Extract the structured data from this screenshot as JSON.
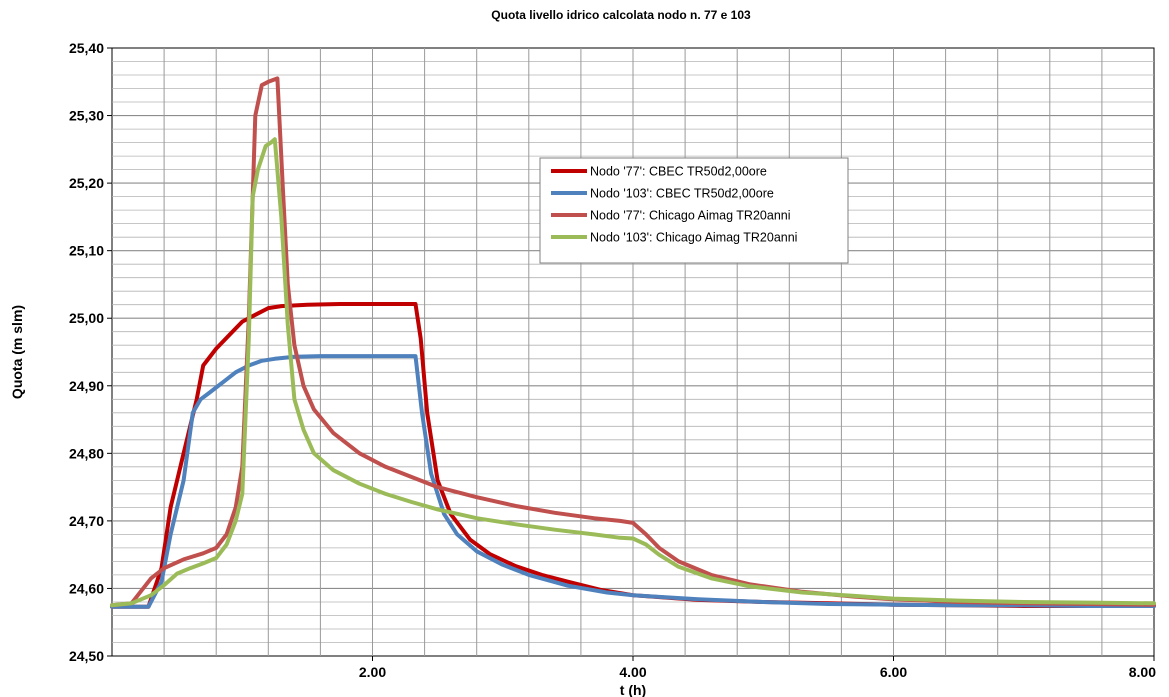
{
  "chart_data": {
    "type": "line",
    "title": "Quota livello idrico calcolata nodo n. 77 e 103",
    "xlabel": "t (h)",
    "ylabel": "Quota (m slm)",
    "xlim": [
      0,
      8
    ],
    "ylim": [
      24.5,
      25.4
    ],
    "x_ticks": [
      2,
      4,
      6,
      8
    ],
    "x_tick_labels": [
      "2.00",
      "4.00",
      "6.00",
      "8.00"
    ],
    "y_ticks": [
      24.5,
      24.6,
      24.7,
      24.8,
      24.9,
      25.0,
      25.1,
      25.2,
      25.3,
      25.4
    ],
    "y_tick_labels": [
      "24,50",
      "24,60",
      "24,70",
      "24,80",
      "24,90",
      "25,00",
      "25,10",
      "25,20",
      "25,30",
      "25,40"
    ],
    "grid": {
      "x_major": 0.4,
      "y_minor": 0.02
    },
    "legend_position": "upper-center",
    "series": [
      {
        "name": "Nodo '77': CBEC TR50d2,00ore",
        "color": "#c00000",
        "x": [
          0,
          0.28,
          0.38,
          0.45,
          0.55,
          0.65,
          0.7,
          0.8,
          0.9,
          1.0,
          1.1,
          1.2,
          1.3,
          1.5,
          1.75,
          2.0,
          2.25,
          2.33,
          2.37,
          2.42,
          2.5,
          2.6,
          2.75,
          2.9,
          3.1,
          3.3,
          3.5,
          3.75,
          4.0,
          4.5,
          5.0,
          5.5,
          6.0,
          6.5,
          7.0,
          7.5,
          8.0
        ],
        "y": [
          24.573,
          24.573,
          24.63,
          24.72,
          24.8,
          24.88,
          24.93,
          24.955,
          24.975,
          24.995,
          25.005,
          25.015,
          25.018,
          25.02,
          25.021,
          25.021,
          25.021,
          25.021,
          24.97,
          24.86,
          24.76,
          24.71,
          24.672,
          24.651,
          24.633,
          24.62,
          24.61,
          24.598,
          24.59,
          24.583,
          24.58,
          24.578,
          24.576,
          24.575,
          24.574,
          24.574,
          24.574
        ]
      },
      {
        "name": "Nodo '103': CBEC TR50d2,00ore",
        "color": "#4f81bd",
        "x": [
          0,
          0.28,
          0.38,
          0.45,
          0.55,
          0.62,
          0.68,
          0.75,
          0.85,
          0.95,
          1.05,
          1.15,
          1.25,
          1.4,
          1.6,
          1.8,
          2.0,
          2.25,
          2.33,
          2.38,
          2.45,
          2.55,
          2.65,
          2.8,
          3.0,
          3.2,
          3.5,
          3.8,
          4.0,
          4.5,
          5.0,
          5.5,
          6.0,
          6.5,
          7.0,
          7.5,
          8.0
        ],
        "y": [
          24.573,
          24.573,
          24.61,
          24.68,
          24.76,
          24.86,
          24.88,
          24.89,
          24.905,
          24.92,
          24.93,
          24.937,
          24.94,
          24.943,
          24.944,
          24.944,
          24.944,
          24.944,
          24.944,
          24.86,
          24.77,
          24.71,
          24.68,
          24.655,
          24.635,
          24.62,
          24.604,
          24.594,
          24.59,
          24.584,
          24.58,
          24.577,
          24.576,
          24.575,
          24.575,
          24.574,
          24.574
        ]
      },
      {
        "name": "Nodo '77': Chicago Aimag TR20anni",
        "color": "#c0504d",
        "x": [
          0,
          0.15,
          0.3,
          0.4,
          0.55,
          0.7,
          0.8,
          0.88,
          0.95,
          1.0,
          1.05,
          1.1,
          1.15,
          1.2,
          1.27,
          1.31,
          1.35,
          1.4,
          1.47,
          1.55,
          1.7,
          1.9,
          2.1,
          2.3,
          2.5,
          2.8,
          3.1,
          3.4,
          3.7,
          3.9,
          4.0,
          4.1,
          4.2,
          4.35,
          4.6,
          4.9,
          5.3,
          5.7,
          6.0,
          6.5,
          7.0,
          7.5,
          8.0
        ],
        "y": [
          24.575,
          24.578,
          24.615,
          24.63,
          24.643,
          24.652,
          24.66,
          24.68,
          24.72,
          24.78,
          25.0,
          25.3,
          25.345,
          25.35,
          25.355,
          25.2,
          25.05,
          24.96,
          24.9,
          24.865,
          24.83,
          24.8,
          24.78,
          24.765,
          24.75,
          24.735,
          24.722,
          24.712,
          24.704,
          24.7,
          24.697,
          24.68,
          24.66,
          24.64,
          24.62,
          24.606,
          24.595,
          24.588,
          24.584,
          24.58,
          24.578,
          24.577,
          24.576
        ]
      },
      {
        "name": "Nodo '103': Chicago Aimag TR20anni",
        "color": "#9bbb59",
        "x": [
          0,
          0.15,
          0.3,
          0.4,
          0.5,
          0.6,
          0.7,
          0.8,
          0.88,
          0.95,
          1.0,
          1.05,
          1.08,
          1.12,
          1.18,
          1.22,
          1.25,
          1.3,
          1.35,
          1.4,
          1.47,
          1.55,
          1.7,
          1.9,
          2.1,
          2.3,
          2.5,
          2.8,
          3.1,
          3.4,
          3.7,
          3.9,
          4.0,
          4.1,
          4.2,
          4.35,
          4.6,
          4.9,
          5.3,
          5.7,
          6.0,
          6.5,
          7.0,
          7.5,
          8.0
        ],
        "y": [
          24.575,
          24.578,
          24.59,
          24.605,
          24.622,
          24.63,
          24.637,
          24.645,
          24.665,
          24.7,
          24.74,
          24.97,
          25.18,
          25.22,
          25.255,
          25.26,
          25.265,
          25.15,
          24.99,
          24.88,
          24.835,
          24.8,
          24.775,
          24.755,
          24.74,
          24.728,
          24.717,
          24.704,
          24.695,
          24.687,
          24.68,
          24.675,
          24.674,
          24.665,
          24.65,
          24.632,
          24.615,
          24.603,
          24.594,
          24.589,
          24.585,
          24.582,
          24.58,
          24.579,
          24.578
        ]
      }
    ]
  }
}
